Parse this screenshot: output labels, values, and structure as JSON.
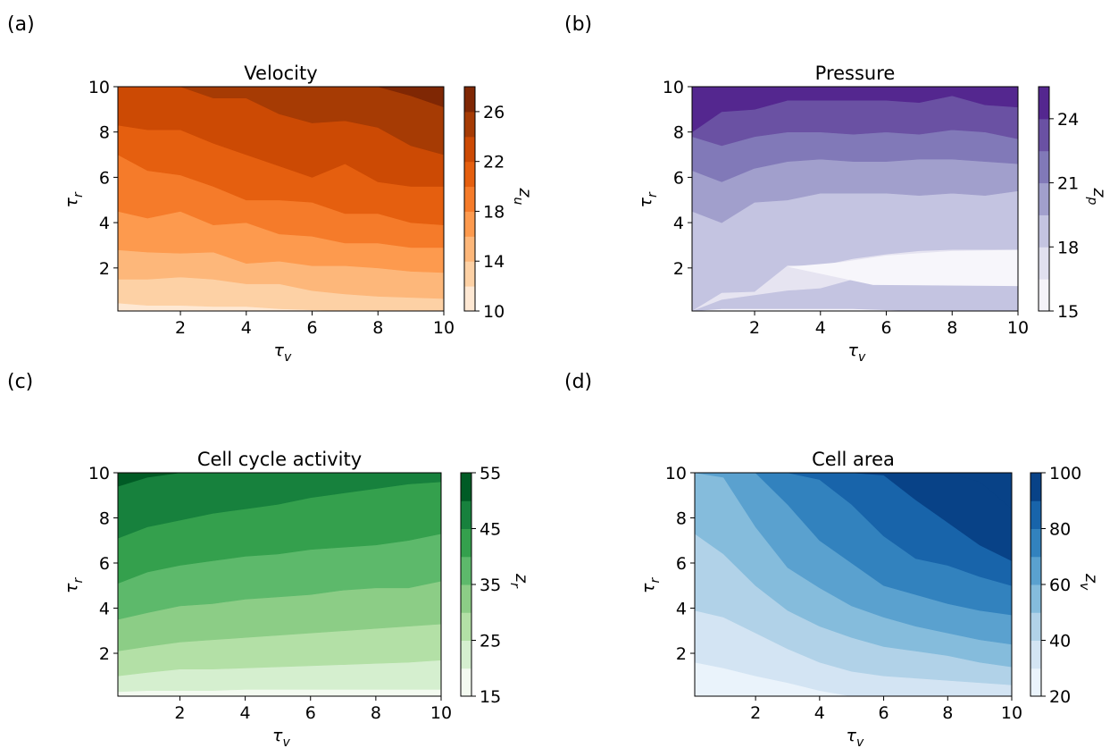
{
  "figure": {
    "background": "#ffffff"
  },
  "chart_data": [
    {
      "type": "heatmap",
      "panel_label": "(a)",
      "title": "Velocity",
      "xlabel": "τv",
      "ylabel": "τr",
      "xlim": [
        0.1,
        10
      ],
      "ylim": [
        0.1,
        10
      ],
      "x_ticks": [
        2,
        4,
        6,
        8,
        10
      ],
      "y_ticks": [
        2,
        4,
        6,
        8,
        10
      ],
      "colorbar": {
        "label": "zu",
        "levels": [
          10,
          12,
          14,
          16,
          18,
          20,
          22,
          24,
          26,
          28
        ],
        "tick_labels": [
          10,
          14,
          18,
          22,
          26
        ]
      },
      "colors": [
        "#fee8d3",
        "#fdd1a5",
        "#fdb77a",
        "#fd9a4e",
        "#f57b2a",
        "#e55f0f",
        "#cc4a04",
        "#a63b04",
        "#7f2704"
      ],
      "contour_x": [
        0.1,
        1,
        2,
        3,
        4,
        5,
        6,
        7,
        8,
        9,
        10
      ],
      "contours": [
        {
          "level": 12,
          "y": [
            0.45,
            0.35,
            0.35,
            0.3,
            0.3,
            0.2,
            0.15,
            0.1,
            0.1,
            0.1,
            0.1
          ]
        },
        {
          "level": 14,
          "y": [
            1.5,
            1.5,
            1.6,
            1.5,
            1.3,
            1.3,
            1.0,
            0.85,
            0.75,
            0.7,
            0.65
          ]
        },
        {
          "level": 16,
          "y": [
            2.8,
            2.7,
            2.65,
            2.7,
            2.2,
            2.3,
            2.1,
            2.1,
            2.0,
            1.85,
            1.8
          ]
        },
        {
          "level": 18,
          "y": [
            4.5,
            4.2,
            4.5,
            3.9,
            4.0,
            3.5,
            3.4,
            3.1,
            3.1,
            2.9,
            2.9
          ]
        },
        {
          "level": 20,
          "y": [
            7.0,
            6.3,
            6.1,
            5.6,
            5.0,
            5.0,
            4.9,
            4.4,
            4.4,
            4.0,
            3.9
          ]
        },
        {
          "level": 22,
          "y": [
            8.3,
            8.1,
            8.1,
            7.5,
            7.0,
            6.5,
            6.0,
            6.6,
            5.8,
            5.6,
            5.6
          ]
        },
        {
          "level": 24,
          "y": [
            10.0,
            10.0,
            10.0,
            9.5,
            9.5,
            8.8,
            8.4,
            8.5,
            8.2,
            7.4,
            7.0
          ]
        },
        {
          "level": 26,
          "y": [
            10.0,
            10.0,
            10.0,
            10.0,
            10.0,
            10.0,
            10.0,
            10.0,
            10.0,
            9.6,
            9.1
          ]
        }
      ]
    },
    {
      "type": "heatmap",
      "panel_label": "(b)",
      "title": "Pressure",
      "xlabel": "τv",
      "ylabel": "τr",
      "xlim": [
        0.1,
        10
      ],
      "ylim": [
        0.1,
        10
      ],
      "x_ticks": [
        2,
        4,
        6,
        8,
        10
      ],
      "y_ticks": [
        2,
        4,
        6,
        8,
        10
      ],
      "colorbar": {
        "label": "zp",
        "levels": [
          15,
          16.5,
          18,
          19.5,
          21,
          22.5,
          24,
          25.5
        ],
        "tick_labels": [
          15,
          18,
          21,
          24
        ]
      },
      "colors": [
        "#f5f3f9",
        "#e1e0ef",
        "#c4c4e1",
        "#a19fcc",
        "#8179b8",
        "#6a51a3",
        "#54278f"
      ],
      "regions": [
        {
          "level": 16.5,
          "y_min": [
            0.1,
            0.6,
            0.8,
            1.0,
            1.1,
            1.5,
            1.9,
            2.1,
            2.3,
            2.4,
            2.4
          ],
          "y_max": [
            0.1,
            0.9,
            0.95,
            2.1,
            2.1,
            2.4,
            2.6,
            2.75,
            2.8,
            2.8,
            2.8
          ]
        }
      ],
      "contour_x": [
        0.1,
        1,
        2,
        3,
        4,
        5,
        6,
        7,
        8,
        9,
        10
      ],
      "contours": [
        {
          "level": 18,
          "y": [
            0.1,
            0.2,
            0.2,
            0.2,
            0.2,
            0.2,
            0.15,
            0.1,
            0.1,
            0.1,
            0.1
          ]
        },
        {
          "level": 16.5,
          "y": [
            2.9,
            2.0,
            2.9,
            3.4,
            3.6,
            3.7,
            3.8,
            3.9,
            4.0,
            4.0,
            4.0
          ]
        },
        {
          "level": 19.5,
          "y": [
            4.5,
            4.0,
            4.9,
            5.0,
            5.3,
            5.3,
            5.3,
            5.2,
            5.3,
            5.2,
            5.4
          ]
        },
        {
          "level": 21,
          "y": [
            6.3,
            5.8,
            6.4,
            6.7,
            6.8,
            6.7,
            6.7,
            6.8,
            6.8,
            6.7,
            6.6
          ]
        },
        {
          "level": 22.5,
          "y": [
            7.8,
            7.4,
            7.8,
            8.0,
            8.0,
            7.9,
            8.0,
            7.9,
            8.1,
            8.0,
            7.7
          ]
        },
        {
          "level": 24,
          "y": [
            8.0,
            8.9,
            9.0,
            9.4,
            9.4,
            9.4,
            9.4,
            9.3,
            9.6,
            9.2,
            9.1
          ]
        }
      ]
    },
    {
      "type": "heatmap",
      "panel_label": "(c)",
      "title": "Cell cycle activity",
      "xlabel": "τv",
      "ylabel": "τr",
      "xlim": [
        0.1,
        10
      ],
      "ylim": [
        0.1,
        10
      ],
      "x_ticks": [
        2,
        4,
        6,
        8,
        10
      ],
      "y_ticks": [
        2,
        4,
        6,
        8,
        10
      ],
      "colorbar": {
        "label": "zr",
        "levels": [
          15,
          20,
          25,
          30,
          35,
          40,
          45,
          50,
          55
        ],
        "tick_labels": [
          15,
          25,
          35,
          45,
          55
        ]
      },
      "colors": [
        "#f3faf0",
        "#d5efcf",
        "#b3e0a6",
        "#8ccd86",
        "#5db96b",
        "#34a04d",
        "#17813d",
        "#005b25"
      ],
      "contour_x": [
        0.1,
        1,
        2,
        3,
        4,
        5,
        6,
        7,
        8,
        9,
        10
      ],
      "contours": [
        {
          "level": 20,
          "y": [
            0.3,
            0.35,
            0.35,
            0.35,
            0.4,
            0.4,
            0.4,
            0.4,
            0.4,
            0.4,
            0.4
          ]
        },
        {
          "level": 25,
          "y": [
            1.0,
            1.15,
            1.3,
            1.3,
            1.35,
            1.4,
            1.45,
            1.5,
            1.55,
            1.6,
            1.7
          ]
        },
        {
          "level": 30,
          "y": [
            2.1,
            2.3,
            2.5,
            2.6,
            2.7,
            2.8,
            2.9,
            3.0,
            3.1,
            3.2,
            3.3
          ]
        },
        {
          "level": 35,
          "y": [
            3.5,
            3.8,
            4.1,
            4.2,
            4.4,
            4.5,
            4.6,
            4.8,
            4.9,
            4.9,
            5.2
          ]
        },
        {
          "level": 40,
          "y": [
            5.1,
            5.6,
            5.9,
            6.1,
            6.3,
            6.4,
            6.6,
            6.7,
            6.8,
            7.0,
            7.3
          ]
        },
        {
          "level": 45,
          "y": [
            7.1,
            7.6,
            7.9,
            8.2,
            8.4,
            8.6,
            8.9,
            9.1,
            9.3,
            9.5,
            9.6
          ]
        },
        {
          "level": 50,
          "y": [
            9.4,
            9.8,
            10.0,
            10.0,
            10.0,
            10.0,
            10.0,
            10.0,
            10.0,
            10.0,
            10.0
          ]
        }
      ]
    },
    {
      "type": "heatmap",
      "panel_label": "(d)",
      "title": "Cell area",
      "xlabel": "τv",
      "ylabel": "τr",
      "xlim": [
        0.1,
        10
      ],
      "ylim": [
        0.1,
        10
      ],
      "x_ticks": [
        2,
        4,
        6,
        8,
        10
      ],
      "y_ticks": [
        2,
        4,
        6,
        8,
        10
      ],
      "colorbar": {
        "label": "zv",
        "levels": [
          20,
          30,
          40,
          50,
          60,
          70,
          80,
          90,
          100
        ],
        "tick_labels": [
          20,
          40,
          60,
          80,
          100
        ]
      },
      "colors": [
        "#eaf3fb",
        "#d3e4f3",
        "#b1d2e8",
        "#85bcdc",
        "#5aa1cf",
        "#3282be",
        "#1864aa",
        "#084287"
      ],
      "contour_x": [
        0.1,
        1,
        2,
        3,
        4,
        5,
        6,
        7,
        8,
        9,
        10
      ],
      "contours": [
        {
          "level": 30,
          "y": [
            1.6,
            1.35,
            1.0,
            0.7,
            0.35,
            0.1,
            0.1,
            0.1,
            0.1,
            0.1,
            0.1
          ]
        },
        {
          "level": 40,
          "y": [
            3.9,
            3.6,
            2.9,
            2.2,
            1.6,
            1.2,
            1.0,
            0.9,
            0.8,
            0.7,
            0.6
          ]
        },
        {
          "level": 50,
          "y": [
            7.3,
            6.4,
            5.0,
            3.9,
            3.2,
            2.7,
            2.3,
            2.1,
            1.9,
            1.6,
            1.4
          ]
        },
        {
          "level": 60,
          "y": [
            10.0,
            9.8,
            7.6,
            5.8,
            4.9,
            4.1,
            3.6,
            3.2,
            2.9,
            2.6,
            2.4
          ]
        },
        {
          "level": 70,
          "y": [
            10.0,
            10.0,
            10.0,
            8.6,
            7.0,
            6.0,
            5.0,
            4.6,
            4.2,
            3.9,
            3.7
          ]
        },
        {
          "level": 80,
          "y": [
            10.0,
            10.0,
            10.0,
            10.0,
            9.7,
            8.6,
            7.2,
            6.2,
            5.9,
            5.4,
            5.0
          ]
        },
        {
          "level": 90,
          "y": [
            10.0,
            10.0,
            10.0,
            10.0,
            10.0,
            10.0,
            9.9,
            8.8,
            7.8,
            6.8,
            6.1
          ]
        },
        {
          "level": 100,
          "y": [
            10.0,
            10.0,
            10.0,
            10.0,
            10.0,
            10.0,
            10.0,
            10.0,
            10.0,
            9.6,
            8.4
          ]
        }
      ]
    }
  ]
}
